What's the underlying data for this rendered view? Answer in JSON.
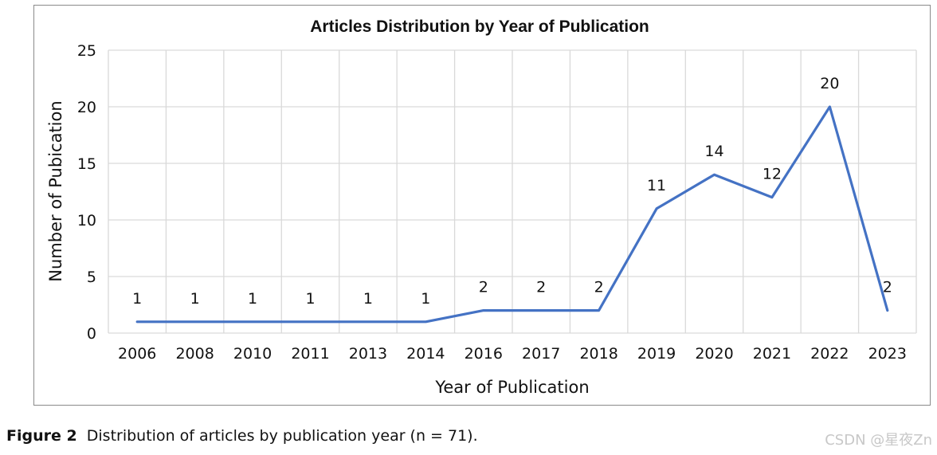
{
  "chart_data": {
    "type": "line",
    "title": "Articles Distribution by Year of Publication",
    "xlabel": "Year of Publication",
    "ylabel": "Number of Pubication",
    "categories": [
      "2006",
      "2008",
      "2010",
      "2011",
      "2013",
      "2014",
      "2016",
      "2017",
      "2018",
      "2019",
      "2020",
      "2021",
      "2022",
      "2023"
    ],
    "series": [
      {
        "values": [
          1,
          1,
          1,
          1,
          1,
          1,
          2,
          2,
          2,
          11,
          14,
          12,
          20,
          2
        ]
      }
    ],
    "ylim": [
      0,
      25
    ],
    "yticks": [
      "0",
      "5",
      "10",
      "15",
      "20",
      "25"
    ],
    "data_labels": [
      "1",
      "1",
      "1",
      "1",
      "1",
      "1",
      "2",
      "2",
      "2",
      "11",
      "14",
      "12",
      "20",
      "2"
    ],
    "grid": true,
    "line_color": "#4472C4"
  },
  "caption": {
    "label": "Figure 2",
    "text": "Distribution of articles by publication year (n = 71)."
  },
  "watermark": "CSDN @星夜Zn"
}
